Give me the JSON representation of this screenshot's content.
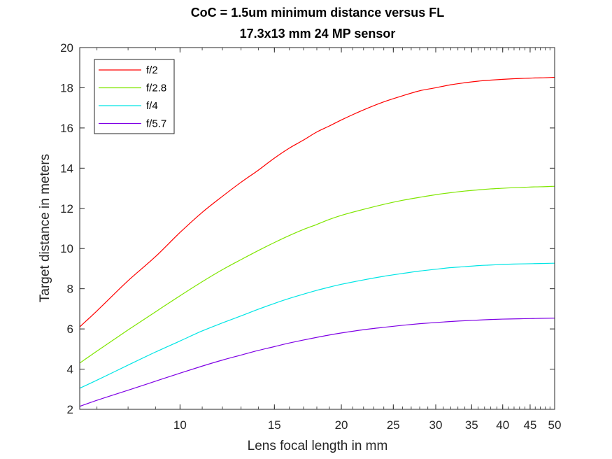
{
  "chart_data": {
    "type": "line",
    "title": "CoC = 1.5um minimum distance versus FL",
    "subtitle": "17.3x13 mm 24 MP sensor",
    "xlabel": "Lens focal length in mm",
    "ylabel": "Target distance in meters",
    "xscale": "log",
    "xlim": [
      6.5,
      50
    ],
    "ylim": [
      2,
      20
    ],
    "x_ticks": [
      10,
      15,
      20,
      25,
      30,
      35,
      40,
      45,
      50
    ],
    "y_ticks": [
      2,
      4,
      6,
      8,
      10,
      12,
      14,
      16,
      18,
      20
    ],
    "grid": false,
    "legend_position": "top-left",
    "x": [
      6.5,
      7,
      8,
      9,
      10,
      11,
      12,
      13,
      14,
      15,
      16,
      17,
      18,
      19,
      20,
      22,
      24,
      26,
      28,
      30,
      32,
      34,
      36,
      38,
      40,
      42,
      44,
      46,
      48,
      50
    ],
    "series": [
      {
        "name": "f/2",
        "color": "#ff0000",
        "values": [
          6.1,
          6.9,
          8.4,
          9.6,
          10.8,
          11.8,
          12.6,
          13.3,
          13.9,
          14.5,
          15.0,
          15.4,
          15.8,
          16.1,
          16.4,
          16.9,
          17.3,
          17.6,
          17.85,
          18.0,
          18.15,
          18.25,
          18.33,
          18.38,
          18.42,
          18.45,
          18.47,
          18.49,
          18.5,
          18.52
        ]
      },
      {
        "name": "f/2.8",
        "color": "#7fe600",
        "values": [
          4.3,
          4.9,
          5.95,
          6.85,
          7.65,
          8.35,
          8.95,
          9.45,
          9.9,
          10.3,
          10.65,
          10.95,
          11.2,
          11.45,
          11.65,
          11.95,
          12.2,
          12.4,
          12.55,
          12.68,
          12.78,
          12.86,
          12.92,
          12.97,
          13.0,
          13.03,
          13.05,
          13.07,
          13.08,
          13.1
        ]
      },
      {
        "name": "f/4",
        "color": "#00e5e5",
        "values": [
          3.05,
          3.45,
          4.2,
          4.85,
          5.4,
          5.9,
          6.3,
          6.65,
          6.98,
          7.27,
          7.52,
          7.73,
          7.92,
          8.08,
          8.22,
          8.44,
          8.62,
          8.76,
          8.88,
          8.97,
          9.05,
          9.1,
          9.15,
          9.18,
          9.21,
          9.23,
          9.24,
          9.25,
          9.26,
          9.27
        ]
      },
      {
        "name": "f/5.7",
        "color": "#7f00e5",
        "values": [
          2.15,
          2.45,
          2.95,
          3.4,
          3.8,
          4.15,
          4.45,
          4.7,
          4.93,
          5.12,
          5.3,
          5.45,
          5.58,
          5.7,
          5.8,
          5.96,
          6.08,
          6.18,
          6.26,
          6.32,
          6.37,
          6.41,
          6.44,
          6.47,
          6.49,
          6.5,
          6.51,
          6.52,
          6.53,
          6.54
        ]
      }
    ]
  }
}
